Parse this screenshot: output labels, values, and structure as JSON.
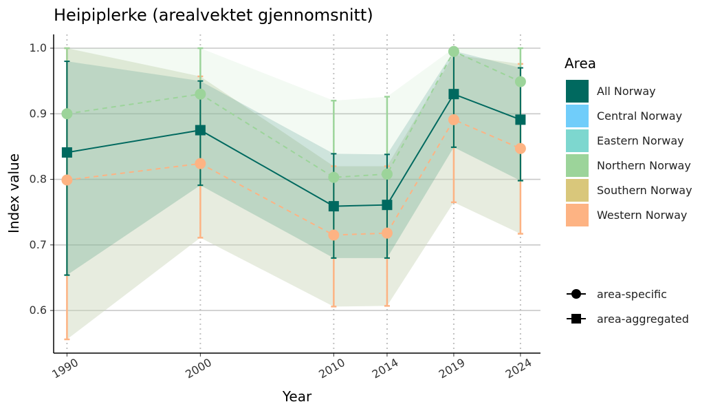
{
  "chart_data": {
    "type": "line",
    "title": "Heipiplerke (arealvektet gjennomsnitt)",
    "xlabel": "Year",
    "ylabel": "Index value",
    "x": [
      1990,
      2000,
      2010,
      2014,
      2019,
      2024
    ],
    "x_tick_labels": [
      "1990",
      "2000",
      "2010",
      "2014",
      "2019",
      "2024"
    ],
    "y_ticks": [
      0.6,
      0.7,
      0.8,
      0.9,
      1.0
    ],
    "y_tick_labels": [
      "0.6",
      "0.7",
      "0.8",
      "0.9",
      "1.0"
    ],
    "xlim": [
      1989,
      2025.5
    ],
    "ylim": [
      0.535,
      1.021
    ],
    "grid": "horizontal major lines, dotted vertical lines at years",
    "legend": {
      "title": "Area",
      "placement": "right",
      "areas": [
        {
          "label": "All Norway",
          "color": "#00695f"
        },
        {
          "label": "Central Norway",
          "color": "#70cdfa"
        },
        {
          "label": "Eastern Norway",
          "color": "#7dd7cf"
        },
        {
          "label": "Northern Norway",
          "color": "#9cd49a"
        },
        {
          "label": "Southern Norway",
          "color": "#d9c77b"
        },
        {
          "label": "Western Norway",
          "color": "#fdb383"
        }
      ],
      "shapes": [
        {
          "label": "area-specific",
          "shape": "circle"
        },
        {
          "label": "area-aggregated",
          "shape": "square"
        }
      ]
    },
    "series": [
      {
        "name": "All Norway",
        "shape": "square",
        "linestyle": "solid",
        "color": "#00695f",
        "values": [
          0.841,
          0.875,
          0.759,
          0.761,
          0.93,
          0.891
        ],
        "lower": [
          0.654,
          0.791,
          0.68,
          0.68,
          0.849,
          0.798
        ],
        "upper": [
          0.98,
          0.95,
          0.839,
          0.838,
          0.996,
          0.97
        ]
      },
      {
        "name": "Northern Norway",
        "shape": "circle",
        "linestyle": "dashed",
        "color": "#9cd49a",
        "values": [
          0.9,
          0.93,
          0.803,
          0.808,
          0.995,
          0.949
        ],
        "lower": [
          0.654,
          0.791,
          0.68,
          0.68,
          0.849,
          0.798
        ],
        "upper": [
          1.0,
          1.0,
          0.92,
          0.926,
          1.0,
          1.0
        ]
      },
      {
        "name": "Western Norway",
        "shape": "circle",
        "linestyle": "dashed",
        "color": "#fdb383",
        "values": [
          0.799,
          0.824,
          0.715,
          0.718,
          0.891,
          0.847
        ],
        "lower": [
          0.556,
          0.711,
          0.606,
          0.607,
          0.765,
          0.717
        ],
        "upper": [
          1.0,
          0.957,
          0.82,
          0.82,
          0.99,
          0.976
        ]
      }
    ]
  }
}
